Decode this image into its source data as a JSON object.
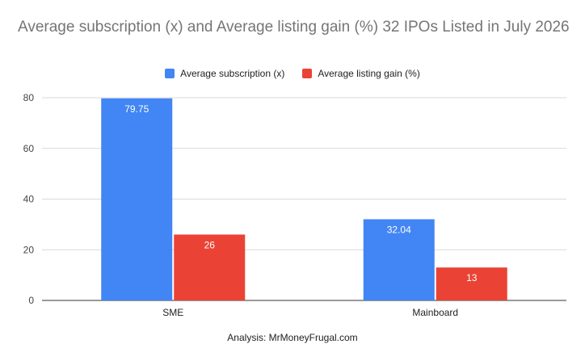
{
  "chart_data": {
    "type": "bar",
    "title": "Average subscription (x) and Average listing gain (%) 32 IPOs Listed in July 2026",
    "categories": [
      "SME",
      "Mainboard"
    ],
    "series": [
      {
        "name": "Average subscription (x)",
        "values": [
          79.75,
          32.04
        ],
        "color": "#4285f4"
      },
      {
        "name": "Average listing gain (%)",
        "values": [
          26,
          13
        ],
        "color": "#ea4335"
      }
    ],
    "ylim": [
      0,
      80
    ],
    "yticks": [
      0,
      20,
      40,
      60,
      80
    ],
    "grid": true,
    "legend_position": "top",
    "data_labels": true,
    "footer": "Analysis: MrMoneyFrugal.com"
  }
}
